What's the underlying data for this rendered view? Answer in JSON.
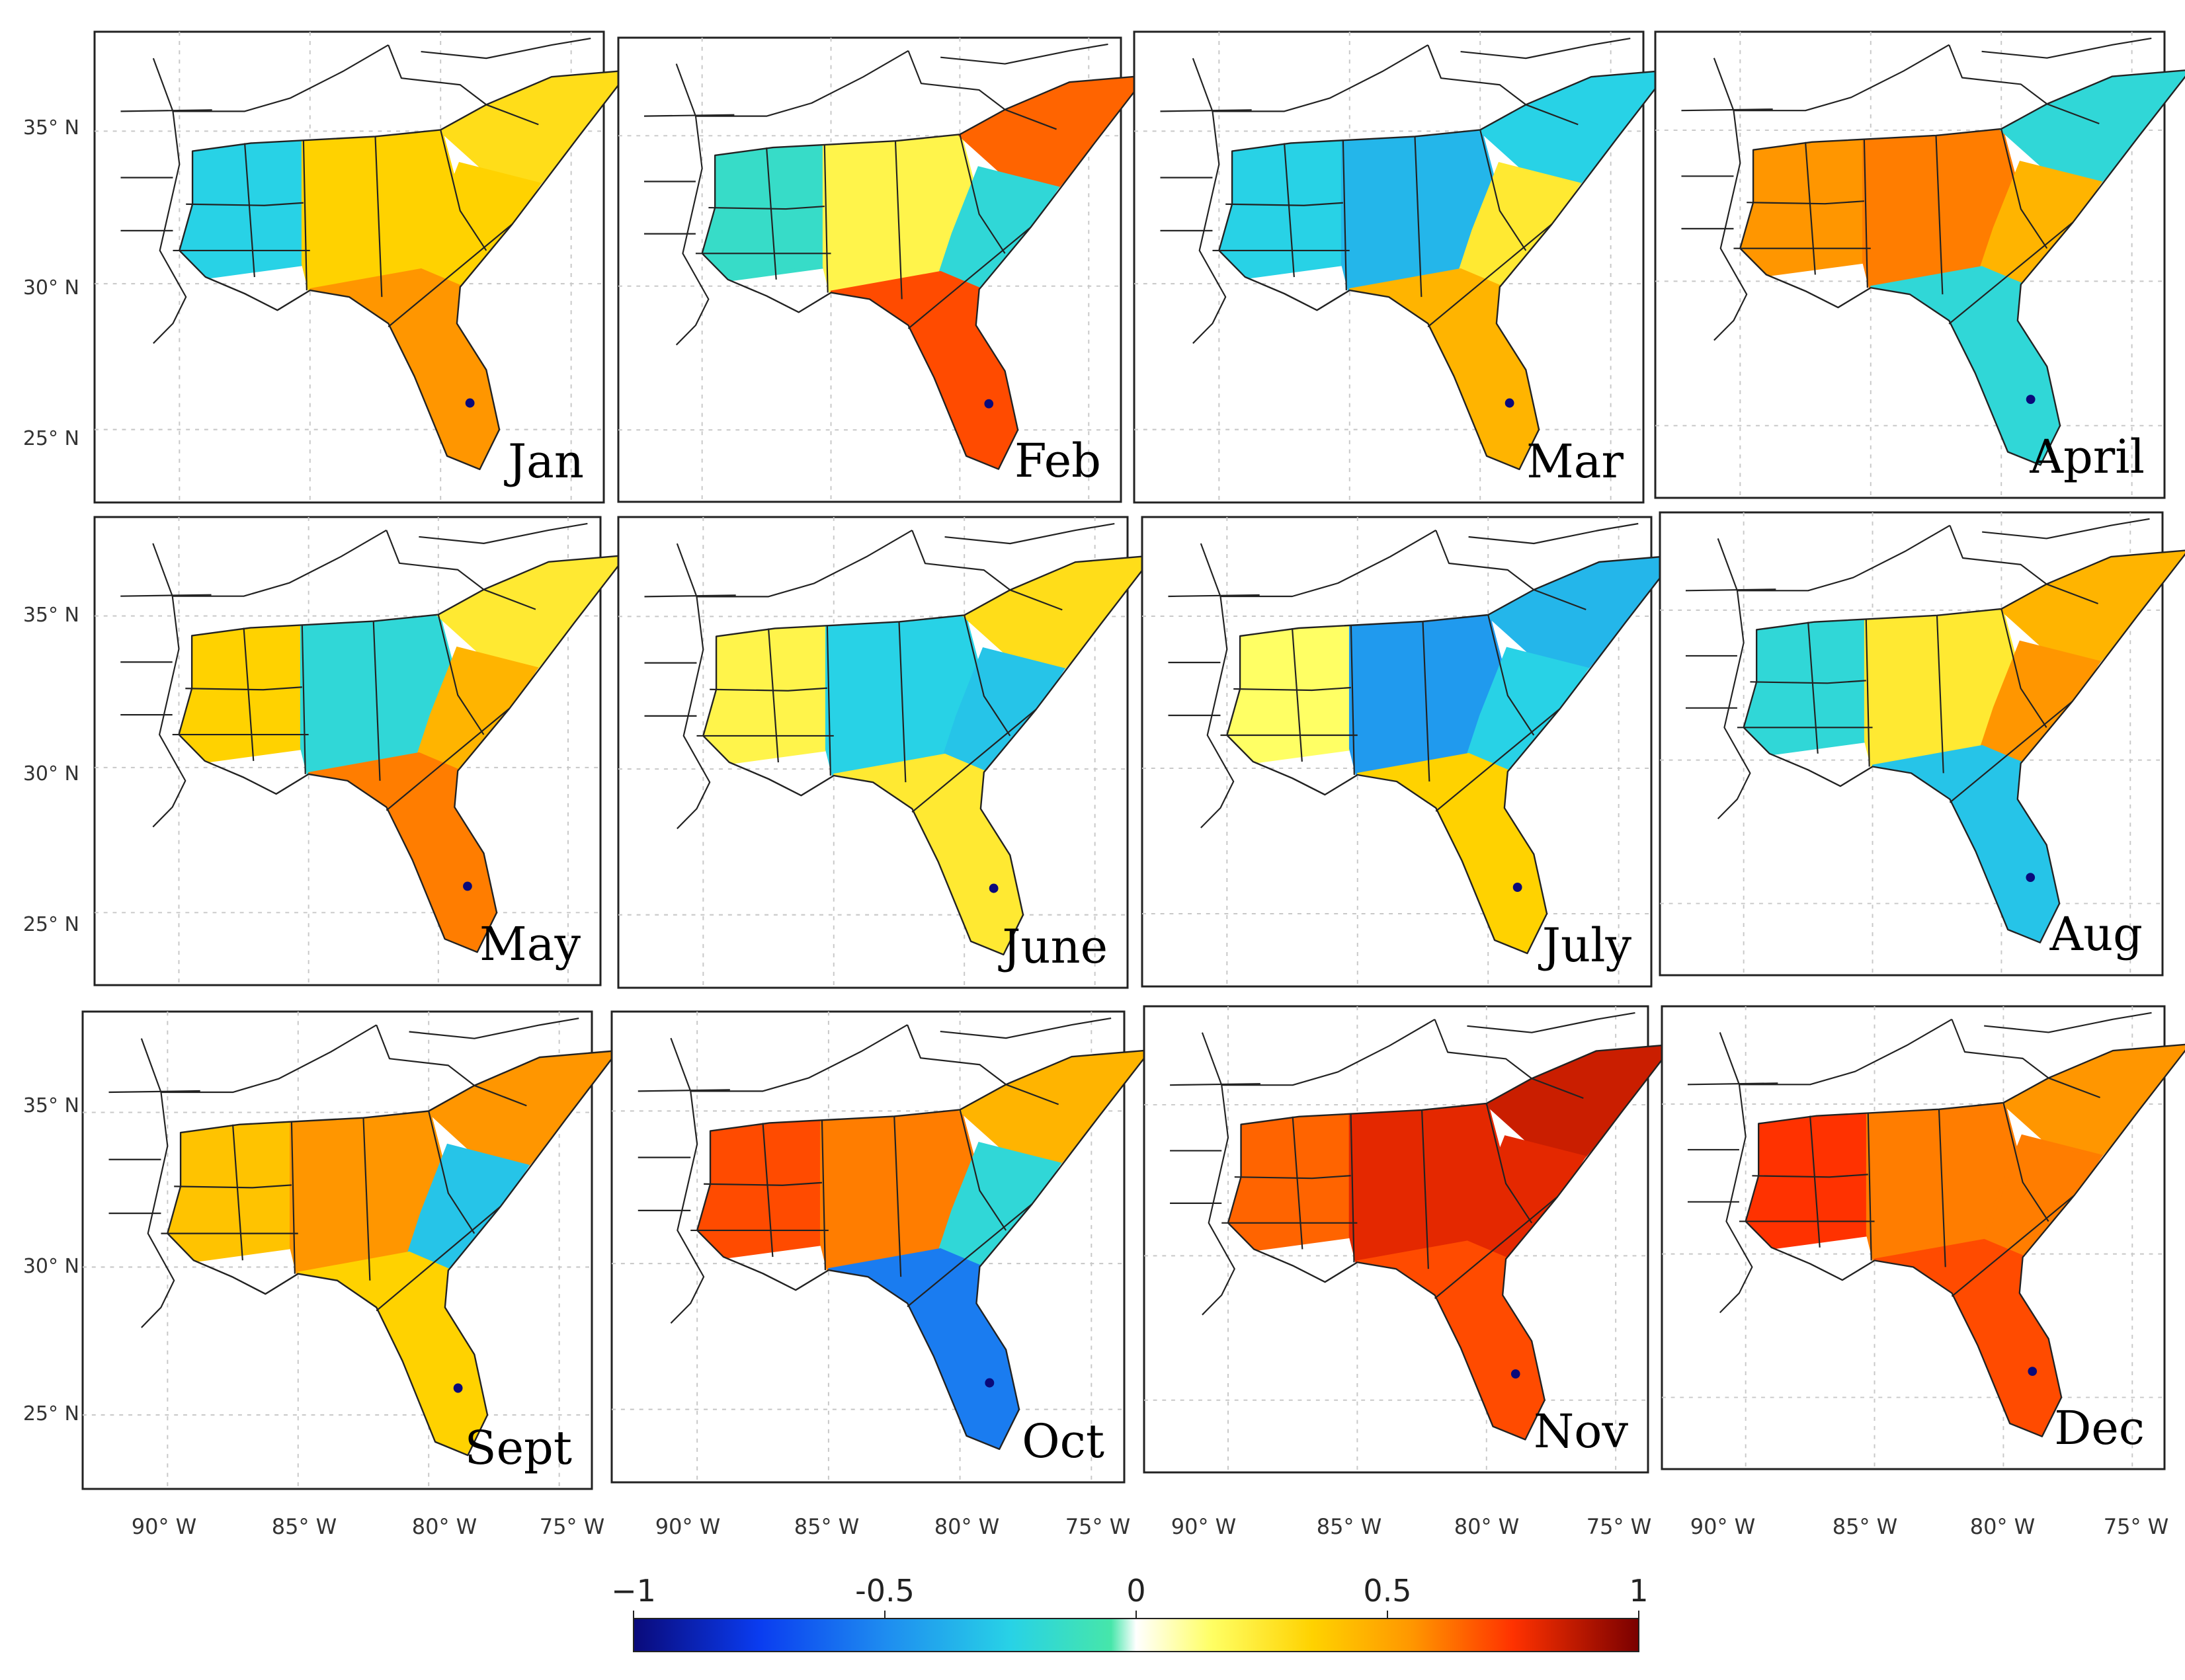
{
  "figure": {
    "lat_labels": [
      "35° N",
      "30° N",
      "25° N"
    ],
    "lon_labels": [
      "90° W",
      "85° W",
      "80° W",
      "75° W"
    ],
    "region_shading_order": [
      "central-west",
      "central-mid",
      "northeast",
      "georgia",
      "florida"
    ]
  },
  "panels": [
    {
      "month": "Jan",
      "values": [
        -0.25,
        0.35,
        0.3,
        0.35,
        0.55
      ]
    },
    {
      "month": "Feb",
      "values": [
        -0.15,
        0.2,
        0.65,
        -0.2,
        0.7
      ]
    },
    {
      "month": "Mar",
      "values": [
        -0.25,
        -0.35,
        -0.25,
        0.25,
        0.45
      ]
    },
    {
      "month": "April",
      "values": [
        0.55,
        0.6,
        -0.2,
        0.45,
        -0.2
      ]
    },
    {
      "month": "May",
      "values": [
        0.35,
        -0.2,
        0.25,
        0.45,
        0.6
      ]
    },
    {
      "month": "June",
      "values": [
        0.2,
        -0.25,
        0.3,
        -0.3,
        0.25
      ]
    },
    {
      "month": "July",
      "values": [
        0.15,
        -0.45,
        -0.35,
        -0.25,
        0.35
      ]
    },
    {
      "month": "Aug",
      "values": [
        -0.2,
        0.25,
        0.45,
        0.55,
        -0.3
      ]
    },
    {
      "month": "Sept",
      "values": [
        0.4,
        0.55,
        0.55,
        -0.3,
        0.35
      ]
    },
    {
      "month": "Oct",
      "values": [
        0.7,
        0.6,
        0.45,
        -0.2,
        -0.55
      ]
    },
    {
      "month": "Nov",
      "values": [
        0.65,
        0.8,
        0.85,
        0.8,
        0.7
      ]
    },
    {
      "month": "Dec",
      "values": [
        0.75,
        0.6,
        0.55,
        0.6,
        0.7
      ]
    }
  ],
  "colorbar": {
    "min": -1,
    "max": 1,
    "ticks": [
      {
        "value": -1,
        "label": "−1"
      },
      {
        "value": -0.5,
        "label": "-0.5"
      },
      {
        "value": 0,
        "label": "0"
      },
      {
        "value": 0.5,
        "label": "0.5"
      },
      {
        "value": 1,
        "label": "1"
      }
    ],
    "stops": [
      {
        "value": -1,
        "color": "#0a0a7a"
      },
      {
        "value": -0.75,
        "color": "#0a3cf0"
      },
      {
        "value": -0.5,
        "color": "#1e8cf0"
      },
      {
        "value": -0.25,
        "color": "#28d2e6"
      },
      {
        "value": -0.05,
        "color": "#46e6aa"
      },
      {
        "value": 0,
        "color": "#ffffff"
      },
      {
        "value": 0.15,
        "color": "#ffff64"
      },
      {
        "value": 0.35,
        "color": "#ffd200"
      },
      {
        "value": 0.55,
        "color": "#ff9600"
      },
      {
        "value": 0.75,
        "color": "#ff3200"
      },
      {
        "value": 1,
        "color": "#7a0000"
      }
    ]
  }
}
